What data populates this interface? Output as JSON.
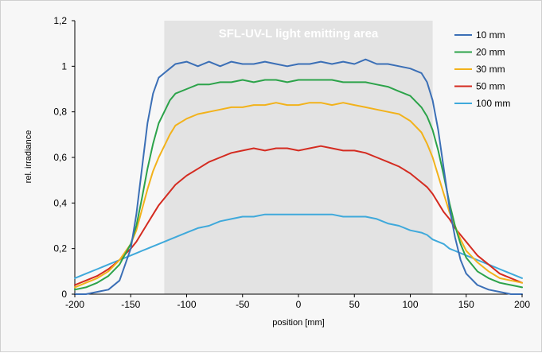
{
  "chart_data": {
    "type": "line",
    "title": "",
    "xlabel": "position [mm]",
    "ylabel": "rel. irradiance",
    "xlim": [
      -200,
      200
    ],
    "ylim": [
      0,
      1.2
    ],
    "xticks": [
      -200,
      -150,
      -100,
      -50,
      0,
      50,
      100,
      150,
      200
    ],
    "yticks": [
      0,
      0.2,
      0.4,
      0.6,
      0.8,
      1,
      1.2
    ],
    "ytick_labels": [
      "0",
      "0,2",
      "0,4",
      "0,6",
      "0,8",
      "1",
      "1,2"
    ],
    "grid": false,
    "legend_position": "top-right",
    "shaded_region": {
      "label": "SFL-UV-L light emitting area",
      "x_range": [
        -120,
        120
      ],
      "color": "#e3e3e3"
    },
    "series": [
      {
        "name": "10 mm",
        "color": "#3b6fb6",
        "x": [
          -200,
          -190,
          -180,
          -170,
          -160,
          -150,
          -145,
          -140,
          -135,
          -130,
          -125,
          -120,
          -115,
          -110,
          -100,
          -90,
          -80,
          -70,
          -60,
          -50,
          -40,
          -30,
          -20,
          -10,
          0,
          10,
          20,
          30,
          40,
          50,
          60,
          70,
          80,
          90,
          100,
          110,
          115,
          120,
          125,
          130,
          135,
          140,
          145,
          150,
          160,
          170,
          180,
          190,
          200
        ],
        "y": [
          0.0,
          0.0,
          0.01,
          0.02,
          0.06,
          0.2,
          0.35,
          0.55,
          0.75,
          0.88,
          0.95,
          0.97,
          0.99,
          1.01,
          1.02,
          1.0,
          1.02,
          1.0,
          1.02,
          1.01,
          1.01,
          1.02,
          1.01,
          1.0,
          1.01,
          1.01,
          1.02,
          1.01,
          1.02,
          1.01,
          1.03,
          1.01,
          1.01,
          1.0,
          0.99,
          0.97,
          0.93,
          0.85,
          0.72,
          0.55,
          0.38,
          0.25,
          0.15,
          0.09,
          0.04,
          0.02,
          0.01,
          0.0,
          0.0
        ]
      },
      {
        "name": "20 mm",
        "color": "#2ca34a",
        "x": [
          -200,
          -190,
          -180,
          -170,
          -160,
          -150,
          -145,
          -140,
          -135,
          -130,
          -125,
          -120,
          -115,
          -110,
          -100,
          -90,
          -80,
          -70,
          -60,
          -50,
          -40,
          -30,
          -20,
          -10,
          0,
          10,
          20,
          30,
          40,
          50,
          60,
          70,
          80,
          90,
          100,
          110,
          115,
          120,
          125,
          130,
          135,
          140,
          145,
          150,
          160,
          170,
          180,
          190,
          200
        ],
        "y": [
          0.02,
          0.03,
          0.05,
          0.08,
          0.13,
          0.22,
          0.3,
          0.42,
          0.55,
          0.66,
          0.75,
          0.8,
          0.85,
          0.88,
          0.9,
          0.92,
          0.92,
          0.93,
          0.93,
          0.94,
          0.93,
          0.94,
          0.94,
          0.93,
          0.94,
          0.94,
          0.94,
          0.94,
          0.93,
          0.93,
          0.93,
          0.92,
          0.91,
          0.89,
          0.87,
          0.82,
          0.78,
          0.72,
          0.63,
          0.52,
          0.4,
          0.3,
          0.22,
          0.16,
          0.1,
          0.07,
          0.05,
          0.04,
          0.03
        ]
      },
      {
        "name": "30 mm",
        "color": "#f2b21b",
        "x": [
          -200,
          -190,
          -180,
          -170,
          -160,
          -150,
          -145,
          -140,
          -135,
          -130,
          -125,
          -120,
          -115,
          -110,
          -100,
          -90,
          -80,
          -70,
          -60,
          -50,
          -40,
          -30,
          -20,
          -10,
          0,
          10,
          20,
          30,
          40,
          50,
          60,
          70,
          80,
          90,
          100,
          110,
          115,
          120,
          125,
          130,
          135,
          140,
          145,
          150,
          160,
          170,
          180,
          190,
          200
        ],
        "y": [
          0.03,
          0.05,
          0.07,
          0.1,
          0.15,
          0.22,
          0.28,
          0.37,
          0.46,
          0.54,
          0.6,
          0.65,
          0.7,
          0.74,
          0.77,
          0.79,
          0.8,
          0.81,
          0.82,
          0.82,
          0.83,
          0.83,
          0.84,
          0.83,
          0.83,
          0.84,
          0.84,
          0.83,
          0.84,
          0.83,
          0.82,
          0.81,
          0.8,
          0.79,
          0.76,
          0.71,
          0.66,
          0.6,
          0.52,
          0.44,
          0.36,
          0.3,
          0.24,
          0.19,
          0.14,
          0.1,
          0.07,
          0.06,
          0.05
        ]
      },
      {
        "name": "50 mm",
        "color": "#d42b20",
        "x": [
          -200,
          -190,
          -180,
          -170,
          -160,
          -150,
          -145,
          -140,
          -135,
          -130,
          -125,
          -120,
          -115,
          -110,
          -100,
          -90,
          -80,
          -70,
          -60,
          -50,
          -40,
          -30,
          -20,
          -10,
          0,
          10,
          20,
          30,
          40,
          50,
          60,
          70,
          80,
          90,
          100,
          110,
          115,
          120,
          125,
          130,
          135,
          140,
          145,
          150,
          160,
          170,
          180,
          190,
          200
        ],
        "y": [
          0.04,
          0.06,
          0.08,
          0.11,
          0.15,
          0.2,
          0.23,
          0.27,
          0.31,
          0.35,
          0.39,
          0.42,
          0.45,
          0.48,
          0.52,
          0.55,
          0.58,
          0.6,
          0.62,
          0.63,
          0.64,
          0.63,
          0.64,
          0.64,
          0.63,
          0.64,
          0.65,
          0.64,
          0.63,
          0.63,
          0.62,
          0.6,
          0.58,
          0.56,
          0.53,
          0.49,
          0.47,
          0.44,
          0.4,
          0.36,
          0.33,
          0.29,
          0.26,
          0.23,
          0.17,
          0.13,
          0.09,
          0.07,
          0.05
        ]
      },
      {
        "name": "100 mm",
        "color": "#3fa9db",
        "x": [
          -200,
          -190,
          -180,
          -170,
          -160,
          -150,
          -145,
          -140,
          -135,
          -130,
          -125,
          -120,
          -115,
          -110,
          -100,
          -90,
          -80,
          -70,
          -60,
          -50,
          -40,
          -30,
          -20,
          -10,
          0,
          10,
          20,
          30,
          40,
          50,
          60,
          70,
          80,
          90,
          100,
          110,
          115,
          120,
          125,
          130,
          135,
          140,
          145,
          150,
          160,
          170,
          180,
          190,
          200
        ],
        "y": [
          0.07,
          0.09,
          0.11,
          0.13,
          0.15,
          0.17,
          0.18,
          0.19,
          0.2,
          0.21,
          0.22,
          0.23,
          0.24,
          0.25,
          0.27,
          0.29,
          0.3,
          0.32,
          0.33,
          0.34,
          0.34,
          0.35,
          0.35,
          0.35,
          0.35,
          0.35,
          0.35,
          0.35,
          0.34,
          0.34,
          0.34,
          0.33,
          0.31,
          0.3,
          0.28,
          0.27,
          0.26,
          0.24,
          0.23,
          0.22,
          0.2,
          0.19,
          0.18,
          0.17,
          0.15,
          0.13,
          0.11,
          0.09,
          0.07
        ]
      }
    ]
  }
}
